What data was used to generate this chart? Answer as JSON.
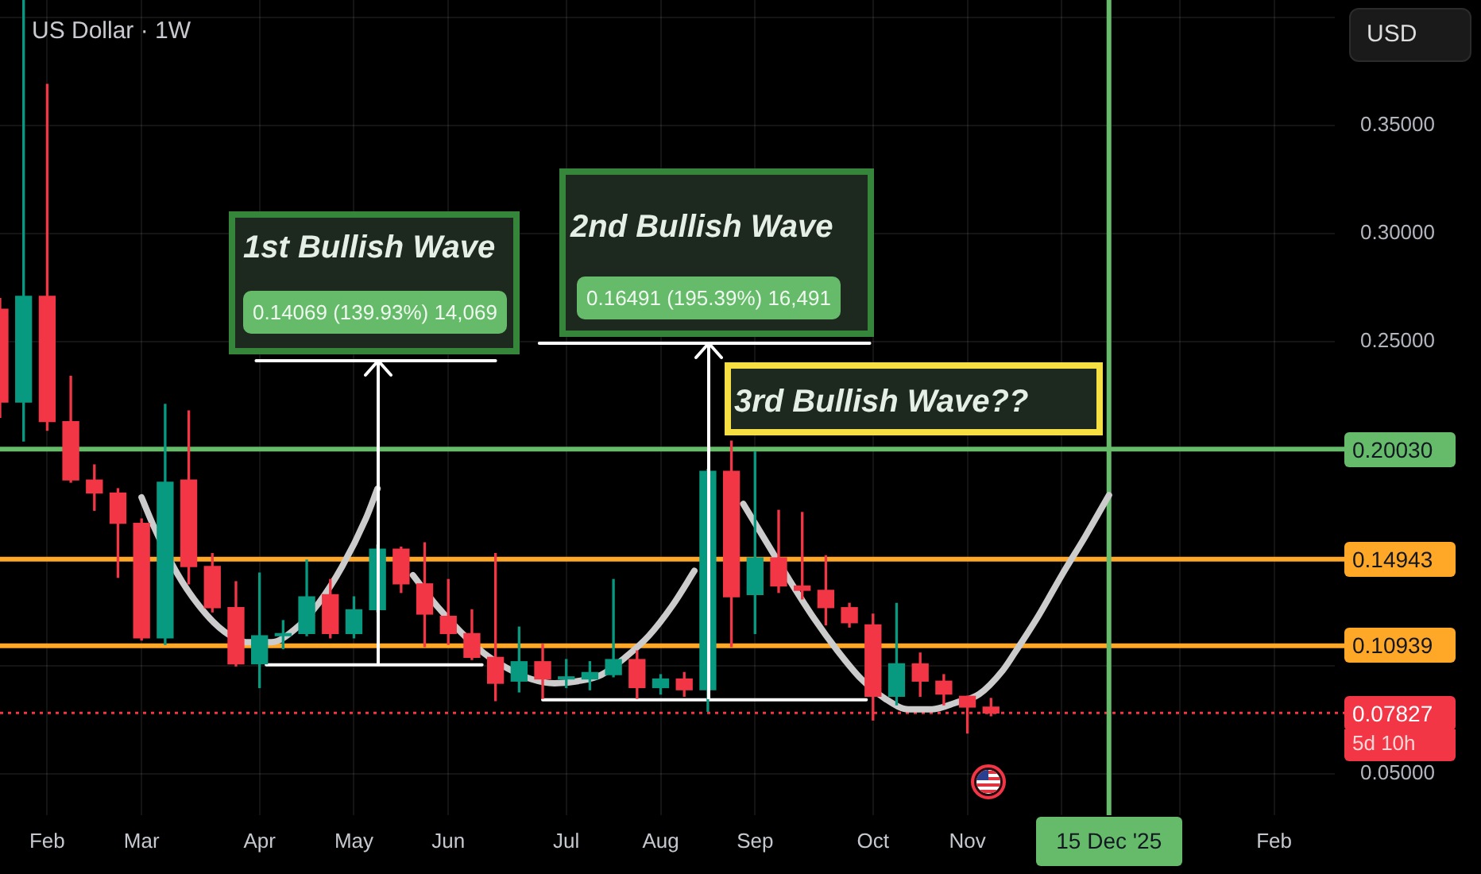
{
  "chart_data": {
    "type": "candlestick",
    "title": "US Dollar · 1W",
    "x": [
      "2025-01-20",
      "2025-01-27",
      "2025-02-03",
      "2025-02-10",
      "2025-02-17",
      "2025-02-24",
      "2025-03-03",
      "2025-03-10",
      "2025-03-17",
      "2025-03-24",
      "2025-03-31",
      "2025-04-07",
      "2025-04-14",
      "2025-04-21",
      "2025-04-28",
      "2025-05-05",
      "2025-05-12",
      "2025-05-19",
      "2025-05-26",
      "2025-06-02",
      "2025-06-09",
      "2025-06-16",
      "2025-06-23",
      "2025-06-30",
      "2025-07-07",
      "2025-07-14",
      "2025-07-21",
      "2025-07-28",
      "2025-08-04",
      "2025-08-11",
      "2025-08-18",
      "2025-08-25",
      "2025-09-01",
      "2025-09-08",
      "2025-09-15",
      "2025-09-22",
      "2025-09-29",
      "2025-10-06",
      "2025-10-13",
      "2025-10-20",
      "2025-10-27",
      "2025-11-03",
      "2025-11-10"
    ],
    "ohlc": [
      [
        0.265,
        0.27,
        0.215,
        0.222
      ],
      [
        0.222,
        0.408,
        0.204,
        0.271
      ],
      [
        0.271,
        0.369,
        0.209,
        0.213
      ],
      [
        0.213,
        0.234,
        0.185,
        0.186
      ],
      [
        0.186,
        0.193,
        0.172,
        0.18
      ],
      [
        0.18,
        0.182,
        0.141,
        0.166
      ],
      [
        0.166,
        0.168,
        0.112,
        0.113
      ],
      [
        0.113,
        0.221,
        0.11,
        0.185
      ],
      [
        0.186,
        0.218,
        0.138,
        0.146
      ],
      [
        0.146,
        0.152,
        0.125,
        0.127
      ],
      [
        0.127,
        0.139,
        0.1,
        0.101
      ],
      [
        0.101,
        0.143,
        0.09,
        0.114
      ],
      [
        0.114,
        0.121,
        0.108,
        0.115
      ],
      [
        0.115,
        0.149,
        0.114,
        0.132
      ],
      [
        0.133,
        0.14,
        0.113,
        0.115
      ],
      [
        0.115,
        0.132,
        0.113,
        0.126
      ],
      [
        0.126,
        0.156,
        0.125,
        0.154
      ],
      [
        0.154,
        0.155,
        0.134,
        0.138
      ],
      [
        0.138,
        0.157,
        0.109,
        0.124
      ],
      [
        0.123,
        0.14,
        0.11,
        0.115
      ],
      [
        0.115,
        0.126,
        0.103,
        0.104
      ],
      [
        0.104,
        0.152,
        0.084,
        0.092
      ],
      [
        0.093,
        0.118,
        0.088,
        0.102
      ],
      [
        0.102,
        0.11,
        0.085,
        0.094
      ],
      [
        0.094,
        0.103,
        0.09,
        0.095
      ],
      [
        0.094,
        0.102,
        0.089,
        0.097
      ],
      [
        0.096,
        0.14,
        0.095,
        0.103
      ],
      [
        0.103,
        0.107,
        0.085,
        0.09
      ],
      [
        0.09,
        0.096,
        0.087,
        0.094
      ],
      [
        0.094,
        0.097,
        0.086,
        0.089
      ],
      [
        0.089,
        0.191,
        0.079,
        0.19
      ],
      [
        0.19,
        0.204,
        0.109,
        0.132
      ],
      [
        0.133,
        0.199,
        0.115,
        0.15
      ],
      [
        0.15,
        0.172,
        0.134,
        0.137
      ],
      [
        0.137,
        0.171,
        0.131,
        0.135
      ],
      [
        0.135,
        0.151,
        0.119,
        0.127
      ],
      [
        0.127,
        0.129,
        0.118,
        0.12
      ],
      [
        0.119,
        0.124,
        0.075,
        0.086
      ],
      [
        0.086,
        0.129,
        0.082,
        0.101
      ],
      [
        0.101,
        0.106,
        0.086,
        0.093
      ],
      [
        0.093,
        0.096,
        0.082,
        0.087
      ],
      [
        0.086,
        0.086,
        0.069,
        0.081
      ],
      [
        0.081,
        0.085,
        0.077,
        0.07827
      ]
    ],
    "colors": [
      "#f23645",
      "#089981",
      "#f23645",
      "#f23645",
      "#f23645",
      "#f23645",
      "#f23645",
      "#089981",
      "#f23645",
      "#f23645",
      "#f23645",
      "#089981",
      "#089981",
      "#089981",
      "#f23645",
      "#089981",
      "#089981",
      "#f23645",
      "#f23645",
      "#f23645",
      "#f23645",
      "#f23645",
      "#089981",
      "#f23645",
      "#089981",
      "#089981",
      "#089981",
      "#f23645",
      "#089981",
      "#f23645",
      "#089981",
      "#f23645",
      "#089981",
      "#f23645",
      "#f23645",
      "#f23645",
      "#f23645",
      "#f23645",
      "#089981",
      "#f23645",
      "#f23645",
      "#f23645",
      "#f23645"
    ],
    "series": [
      {
        "type": "line",
        "color": "#cccccc",
        "x": [
          "2025-03-03",
          "2025-03-06T12:00",
          "2025-03-13T12:00",
          "2025-03-20T12:00",
          "2025-03-27T12:00",
          "2025-04-03T12:00",
          "2025-04-10T12:00",
          "2025-04-17T12:00",
          "2025-04-24T12:00",
          "2025-05-01T12:00",
          "2025-05-08T12:00",
          "2025-05-12"
        ],
        "values": [
          0.178,
          0.165,
          0.143,
          0.127,
          0.116,
          0.111,
          0.111,
          0.117,
          0.129,
          0.146,
          0.168,
          0.182
        ]
      },
      {
        "type": "line",
        "color": "#cccccc",
        "x": [
          "2025-05-22T12:00",
          "2025-05-29T12:00",
          "2025-06-05T12:00",
          "2025-06-12T12:00",
          "2025-06-19T12:00",
          "2025-06-26T12:00",
          "2025-07-03T12:00",
          "2025-07-10T12:00",
          "2025-07-17T12:00",
          "2025-07-24T12:00",
          "2025-07-31T12:00",
          "2025-08-07T12:00",
          "2025-08-14"
        ],
        "values": [
          0.142,
          0.128,
          0.116,
          0.106,
          0.099,
          0.094,
          0.092,
          0.093,
          0.096,
          0.104,
          0.114,
          0.128,
          0.144
        ]
      },
      {
        "type": "line",
        "color": "#cccccc",
        "x": [
          "2025-08-28T12:00",
          "2025-09-04T12:00",
          "2025-09-11T12:00",
          "2025-09-18T12:00",
          "2025-09-25T12:00",
          "2025-10-02T12:00",
          "2025-10-09T12:00",
          "2025-10-16T12:00",
          "2025-10-23T12:00",
          "2025-10-30T12:00",
          "2025-11-06T12:00",
          "2025-11-13T12:00",
          "2025-11-17",
          "2025-11-24",
          "2025-12-01",
          "2025-12-08",
          "2025-12-15"
        ],
        "values": [
          0.175,
          0.157,
          0.139,
          0.122,
          0.107,
          0.094,
          0.085,
          0.08,
          0.08,
          0.083,
          0.087,
          0.098,
          0.106,
          0.123,
          0.142,
          0.16,
          0.179
        ]
      },
      {
        "type": "line",
        "color": "#ffffff",
        "x": [
          "2025-04-09",
          "2025-06-12"
        ],
        "values": [
          0.1005,
          0.1005
        ]
      },
      {
        "type": "line",
        "color": "#ffffff",
        "x": [
          "2025-04-06",
          "2025-06-16"
        ],
        "values": [
          0.2412,
          0.2412
        ]
      },
      {
        "type": "line",
        "color": "#ffffff",
        "x": [
          "2025-06-30",
          "2025-10-04"
        ],
        "values": [
          0.0844,
          0.0844
        ]
      },
      {
        "type": "line",
        "color": "#ffffff",
        "x": [
          "2025-06-29",
          "2025-10-05"
        ],
        "values": [
          0.2493,
          0.2493
        ]
      }
    ],
    "xlim": [
      "2025-01-20",
      "2026-02-20"
    ],
    "xticks": [
      {
        "value": "2025-02-03",
        "label": "Feb"
      },
      {
        "value": "2025-03-03",
        "label": "Mar"
      },
      {
        "value": "2025-04-07",
        "label": "Apr"
      },
      {
        "value": "2025-05-05",
        "label": "May"
      },
      {
        "value": "2025-06-02",
        "label": "Jun"
      },
      {
        "value": "2025-07-07",
        "label": "Jul"
      },
      {
        "value": "2025-08-04",
        "label": "Aug"
      },
      {
        "value": "2025-09-01",
        "label": "Sep"
      },
      {
        "value": "2025-10-06",
        "label": "Oct"
      },
      {
        "value": "2025-11-03",
        "label": "Nov"
      },
      {
        "value": "2025-12-01",
        "label": null
      },
      {
        "value": "2026-01-05",
        "label": null
      },
      {
        "value": "2026-02-02",
        "label": "Feb"
      }
    ],
    "ylim": [
      0.031,
      0.408
    ],
    "yticks": [
      {
        "value": 0.05,
        "label": "0.05000"
      },
      {
        "value": 0.1,
        "label": null
      },
      {
        "value": 0.15,
        "label": null
      },
      {
        "value": 0.2,
        "label": null
      },
      {
        "value": 0.25,
        "label": "0.25000"
      },
      {
        "value": 0.3,
        "label": "0.30000"
      },
      {
        "value": 0.35,
        "label": "0.35000"
      },
      {
        "value": 0.4,
        "label": null
      }
    ],
    "grid": true,
    "ref_lines": [
      {
        "axis": "y",
        "value": 0.2003,
        "label": "0.20030",
        "color": "#66bb6a"
      },
      {
        "axis": "y",
        "value": 0.14943,
        "label": "0.14943",
        "color": "#ffa726"
      },
      {
        "axis": "y",
        "value": 0.10939,
        "label": "0.10939",
        "color": "#ffa726"
      },
      {
        "axis": "y",
        "value": 0.07827,
        "label": "0.07827",
        "color": "#f23645",
        "line_style": "dotted"
      },
      {
        "axis": "x",
        "value": "2025-12-15",
        "label": "15 Dec '25",
        "color": "#66bb6a"
      }
    ],
    "annotations": [
      "1st Bullish Wave",
      "0.14069 (139.93%) 14,069",
      "2nd Bullish Wave",
      "0.16491 (195.39%) 16,491",
      "3rd Bullish Wave??",
      "USD",
      "5d 10h"
    ]
  }
}
